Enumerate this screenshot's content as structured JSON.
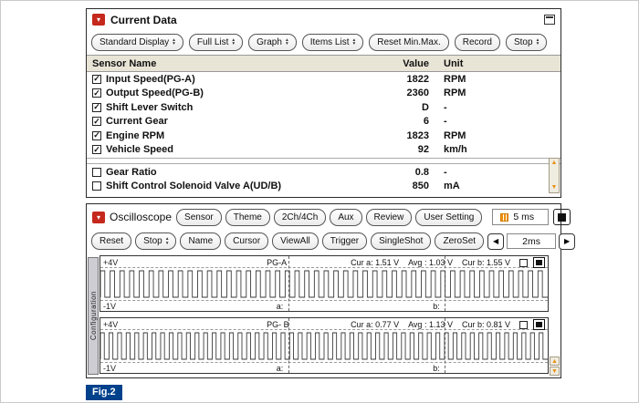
{
  "colors": {
    "accent_red": "#c5281c",
    "table_header_bg": "#e9e5d6",
    "figure_bg": "#00418c",
    "scroll_arrow_orange": "#e8931c"
  },
  "icons": {
    "window_glyph": "▾",
    "spinner_up": "▴",
    "spinner_down": "▾",
    "check": "✓",
    "left_arrow": "◀",
    "right_arrow": "▶",
    "scroll_up": "▲",
    "scroll_down": "▼"
  },
  "current_data": {
    "title": "Current Data",
    "toolbar": [
      {
        "label": "Standard Display",
        "spinner": true
      },
      {
        "label": "Full List",
        "spinner": true
      },
      {
        "label": "Graph",
        "spinner": true
      },
      {
        "label": "Items List",
        "spinner": true
      },
      {
        "label": "Reset Min.Max.",
        "spinner": false
      },
      {
        "label": "Record",
        "spinner": false
      },
      {
        "label": "Stop",
        "spinner": true
      }
    ],
    "columns": {
      "name": "Sensor Name",
      "value": "Value",
      "unit": "Unit"
    },
    "rows": [
      {
        "checked": true,
        "name": "Input Speed(PG-A)",
        "value": "1822",
        "unit": "RPM"
      },
      {
        "checked": true,
        "name": "Output Speed(PG-B)",
        "value": "2360",
        "unit": "RPM"
      },
      {
        "checked": true,
        "name": "Shift Lever Switch",
        "value": "D",
        "unit": "-"
      },
      {
        "checked": true,
        "name": "Current Gear",
        "value": "6",
        "unit": "-"
      },
      {
        "checked": true,
        "name": "Engine RPM",
        "value": "1823",
        "unit": "RPM"
      },
      {
        "checked": true,
        "name": "Vehicle Speed",
        "value": "92",
        "unit": "km/h"
      }
    ],
    "extra_rows": [
      {
        "checked": false,
        "name": "Gear Ratio",
        "value": "0.8",
        "unit": "-"
      },
      {
        "checked": false,
        "name": "Shift Control Solenoid Valve A(UD/B)",
        "value": "850",
        "unit": "mA"
      }
    ]
  },
  "oscilloscope": {
    "title": "Oscilloscope",
    "toolbar1": [
      "Sensor",
      "Theme",
      "2Ch/4Ch",
      "Aux",
      "Review",
      "User Setting"
    ],
    "time_readout": "5 ms",
    "toolbar2": [
      {
        "label": "Reset",
        "spinner": false
      },
      {
        "label": "Stop",
        "spinner": true
      },
      {
        "label": "Name",
        "spinner": false
      },
      {
        "label": "Cursor",
        "spinner": false
      },
      {
        "label": "ViewAll",
        "spinner": false
      },
      {
        "label": "Trigger",
        "spinner": false
      },
      {
        "label": "SingleShot",
        "spinner": false
      },
      {
        "label": "ZeroSet",
        "spinner": false
      }
    ],
    "timebase": "2ms",
    "side_tab": "Configuration",
    "cursor_labels": {
      "a": "a:",
      "b": "b:"
    },
    "channels": [
      {
        "name": "PG-A",
        "top_label": "+4V",
        "bottom_label": "-1V",
        "cur_a": "Cur a: 1.51 V",
        "avg": "Avg : 1.03 V",
        "cur_b": "Cur b: 1.55 V",
        "pulses": 46
      },
      {
        "name": "PG- B",
        "top_label": "+4V",
        "bottom_label": "-1V",
        "cur_a": "Cur a: 0.77 V",
        "avg": "Avg : 1.13 V",
        "cur_b": "Cur b: 0.81 V",
        "pulses": 52
      }
    ]
  },
  "figure_label": "Fig.2"
}
